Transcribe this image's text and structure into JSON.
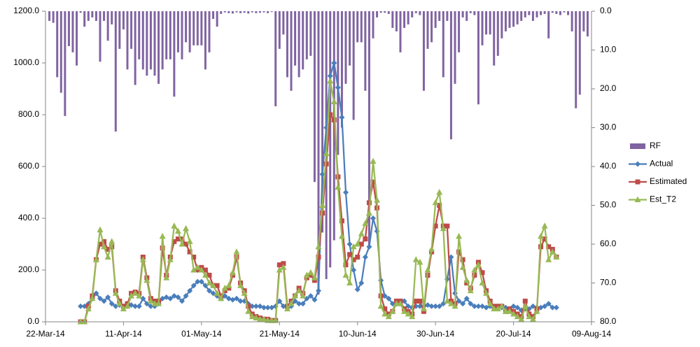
{
  "chart_data": {
    "type": "bar_line",
    "x": [
      "2014-03-23",
      "2014-03-24",
      "2014-03-25",
      "2014-03-26",
      "2014-03-27",
      "2014-03-28",
      "2014-03-29",
      "2014-03-30",
      "2014-03-31",
      "2014-04-01",
      "2014-04-02",
      "2014-04-03",
      "2014-04-04",
      "2014-04-05",
      "2014-04-06",
      "2014-04-07",
      "2014-04-08",
      "2014-04-09",
      "2014-04-10",
      "2014-04-11",
      "2014-04-12",
      "2014-04-13",
      "2014-04-14",
      "2014-04-15",
      "2014-04-16",
      "2014-04-17",
      "2014-04-18",
      "2014-04-19",
      "2014-04-20",
      "2014-04-21",
      "2014-04-22",
      "2014-04-23",
      "2014-04-24",
      "2014-04-25",
      "2014-04-26",
      "2014-04-27",
      "2014-04-28",
      "2014-04-29",
      "2014-04-30",
      "2014-05-01",
      "2014-05-02",
      "2014-05-03",
      "2014-05-04",
      "2014-05-05",
      "2014-05-06",
      "2014-05-07",
      "2014-05-08",
      "2014-05-09",
      "2014-05-10",
      "2014-05-11",
      "2014-05-12",
      "2014-05-13",
      "2014-05-14",
      "2014-05-15",
      "2014-05-16",
      "2014-05-17",
      "2014-05-18",
      "2014-05-19",
      "2014-05-20",
      "2014-05-21",
      "2014-05-22",
      "2014-05-23",
      "2014-05-24",
      "2014-05-25",
      "2014-05-26",
      "2014-05-27",
      "2014-05-28",
      "2014-05-29",
      "2014-05-30",
      "2014-05-31",
      "2014-06-01",
      "2014-06-02",
      "2014-06-03",
      "2014-06-04",
      "2014-06-05",
      "2014-06-06",
      "2014-06-07",
      "2014-06-08",
      "2014-06-09",
      "2014-06-10",
      "2014-06-11",
      "2014-06-12",
      "2014-06-13",
      "2014-06-14",
      "2014-06-15",
      "2014-06-16",
      "2014-06-17",
      "2014-06-18",
      "2014-06-19",
      "2014-06-20",
      "2014-06-21",
      "2014-06-22",
      "2014-06-23",
      "2014-06-24",
      "2014-06-25",
      "2014-06-26",
      "2014-06-27",
      "2014-06-28",
      "2014-06-29",
      "2014-06-30",
      "2014-07-01",
      "2014-07-02",
      "2014-07-03",
      "2014-07-04",
      "2014-07-05",
      "2014-07-06",
      "2014-07-07",
      "2014-07-08",
      "2014-07-09",
      "2014-07-10",
      "2014-07-11",
      "2014-07-12",
      "2014-07-13",
      "2014-07-14",
      "2014-07-15",
      "2014-07-16",
      "2014-07-17",
      "2014-07-18",
      "2014-07-19",
      "2014-07-20",
      "2014-07-21",
      "2014-07-22",
      "2014-07-23",
      "2014-07-24",
      "2014-07-25",
      "2014-07-26",
      "2014-07-27",
      "2014-07-28",
      "2014-07-29",
      "2014-07-30",
      "2014-07-31",
      "2014-08-01",
      "2014-08-02",
      "2014-08-03",
      "2014-08-04",
      "2014-08-05",
      "2014-08-06",
      "2014-08-07",
      "2014-08-08"
    ],
    "series": [
      {
        "name": "RF",
        "type": "bar",
        "axis": "y2",
        "color": "#8064a2",
        "values": [
          2.5,
          3,
          17,
          21,
          27,
          9,
          10.6,
          14,
          0.4,
          4,
          2.5,
          1.6,
          2.5,
          13,
          2.5,
          7.6,
          3.4,
          31,
          9.7,
          4.7,
          15,
          9.7,
          19,
          12.4,
          15,
          16.6,
          15,
          16.6,
          18.7,
          15,
          12.4,
          12.4,
          22,
          10.6,
          12.4,
          8,
          10.6,
          8.8,
          8.8,
          8.8,
          15,
          10.6,
          2,
          4,
          0.7,
          0.3,
          0.5,
          0.6,
          0.3,
          0.5,
          0.4,
          0.6,
          0.3,
          0.5,
          0.4,
          0.3,
          0.5,
          0.2,
          24.5,
          9.7,
          6,
          17,
          20.5,
          14,
          17,
          15,
          12.4,
          11.5,
          44,
          73,
          57,
          69,
          66,
          59,
          37,
          30,
          18.7,
          14,
          28,
          8,
          8,
          20.5,
          61,
          7,
          1.6,
          0.4,
          0.4,
          0.7,
          4.3,
          5.2,
          10.6,
          4.3,
          3.4,
          1.6,
          0.5,
          1,
          20.5,
          9.7,
          8,
          4.3,
          2.5,
          17,
          2.5,
          33,
          18.7,
          10.6,
          1.6,
          2.5,
          0.5,
          1,
          24,
          8.8,
          6,
          6,
          14,
          11.5,
          7,
          5.2,
          4.3,
          4,
          3.4,
          2.5,
          1.6,
          1,
          2.5,
          1.6,
          1,
          0.7,
          7,
          0.4,
          0.7,
          1,
          0.3,
          1,
          5.2,
          25,
          21.5,
          5.2,
          6.5
        ]
      },
      {
        "name": "Actual",
        "type": "line",
        "marker": "diamond",
        "color": "#4a7ebb",
        "values": [
          null,
          null,
          null,
          null,
          null,
          null,
          null,
          null,
          60,
          60,
          70,
          90,
          110,
          90,
          80,
          95,
          70,
          60,
          65,
          60,
          60,
          65,
          60,
          60,
          90,
          70,
          60,
          60,
          70,
          90,
          95,
          90,
          100,
          95,
          80,
          100,
          120,
          140,
          155,
          155,
          140,
          120,
          110,
          100,
          90,
          100,
          90,
          85,
          90,
          80,
          80,
          70,
          60,
          60,
          60,
          55,
          55,
          55,
          60,
          80,
          60,
          60,
          60,
          80,
          70,
          70,
          90,
          100,
          85,
          120,
          570,
          750,
          950,
          1000,
          905,
          790,
          500,
          300,
          200,
          125,
          150,
          250,
          290,
          400,
          350,
          160,
          100,
          90,
          70,
          70,
          80,
          80,
          60,
          55,
          60,
          60,
          60,
          65,
          60,
          60,
          60,
          70,
          165,
          250,
          110,
          80,
          70,
          90,
          70,
          60,
          60,
          60,
          55,
          60,
          55,
          60,
          55,
          55,
          50,
          60,
          55,
          45,
          50,
          50,
          60,
          55,
          55,
          60,
          70,
          55,
          55,
          null,
          null,
          null,
          null,
          null,
          null,
          null,
          null
        ]
      },
      {
        "name": "Estimated",
        "type": "line",
        "marker": "square",
        "color": "#be4b48",
        "values": [
          null,
          null,
          null,
          null,
          null,
          null,
          null,
          null,
          0,
          0,
          60,
          100,
          240,
          300,
          310,
          280,
          290,
          120,
          80,
          60,
          70,
          110,
          115,
          110,
          250,
          170,
          90,
          80,
          80,
          285,
          180,
          250,
          310,
          320,
          320,
          300,
          270,
          250,
          200,
          210,
          200,
          180,
          140,
          140,
          100,
          120,
          130,
          180,
          250,
          150,
          120,
          60,
          30,
          20,
          15,
          10,
          10,
          5,
          5,
          220,
          225,
          60,
          80,
          100,
          130,
          110,
          170,
          180,
          160,
          250,
          420,
          610,
          800,
          780,
          560,
          390,
          220,
          260,
          240,
          250,
          300,
          320,
          460,
          540,
          440,
          100,
          50,
          30,
          40,
          80,
          80,
          50,
          40,
          30,
          80,
          80,
          40,
          180,
          270,
          370,
          450,
          370,
          370,
          80,
          70,
          270,
          240,
          150,
          130,
          180,
          230,
          190,
          120,
          80,
          60,
          60,
          60,
          40,
          50,
          40,
          30,
          20,
          80,
          30,
          20,
          50,
          290,
          320,
          290,
          280,
          250,
          null,
          null,
          null,
          null,
          null,
          null,
          null,
          null
        ]
      },
      {
        "name": "Est_T2",
        "type": "line",
        "marker": "triangle",
        "color": "#98b954",
        "values": [
          null,
          null,
          null,
          null,
          null,
          null,
          null,
          null,
          0,
          0,
          50,
          90,
          240,
          355,
          290,
          250,
          310,
          110,
          70,
          50,
          60,
          100,
          110,
          100,
          240,
          160,
          80,
          70,
          70,
          330,
          170,
          240,
          370,
          350,
          300,
          360,
          310,
          200,
          210,
          200,
          180,
          150,
          140,
          110,
          90,
          130,
          140,
          190,
          270,
          140,
          110,
          40,
          20,
          15,
          10,
          10,
          5,
          5,
          5,
          200,
          210,
          50,
          70,
          100,
          120,
          100,
          180,
          190,
          170,
          290,
          450,
          650,
          930,
          850,
          520,
          330,
          180,
          150,
          290,
          300,
          340,
          380,
          420,
          620,
          470,
          60,
          30,
          20,
          40,
          70,
          70,
          40,
          30,
          20,
          240,
          230,
          50,
          200,
          280,
          460,
          500,
          360,
          80,
          70,
          60,
          330,
          210,
          160,
          120,
          200,
          220,
          150,
          110,
          70,
          50,
          50,
          60,
          40,
          40,
          30,
          20,
          10,
          60,
          20,
          10,
          40,
          330,
          370,
          240,
          270,
          250,
          null,
          null,
          null,
          null,
          null,
          null,
          null,
          null
        ]
      }
    ],
    "xlim": [
      "2014-03-22",
      "2014-08-09"
    ],
    "xticks": [
      {
        "value": "2014-03-22",
        "label": "22-Mar-14"
      },
      {
        "value": "2014-04-11",
        "label": "11-Apr-14"
      },
      {
        "value": "2014-05-01",
        "label": "01-May-14"
      },
      {
        "value": "2014-05-21",
        "label": "21-May-14"
      },
      {
        "value": "2014-06-10",
        "label": "10-Jun-14"
      },
      {
        "value": "2014-06-30",
        "label": "30-Jun-14"
      },
      {
        "value": "2014-07-20",
        "label": "20-Jul-14"
      },
      {
        "value": "2014-08-09",
        "label": "09-Aug-14"
      }
    ],
    "ylim": [
      0,
      1200
    ],
    "yticks": [
      {
        "value": 0,
        "label": "0.0"
      },
      {
        "value": 200,
        "label": "200.0"
      },
      {
        "value": 400,
        "label": "400.0"
      },
      {
        "value": 600,
        "label": "600.0"
      },
      {
        "value": 800,
        "label": "800.0"
      },
      {
        "value": 1000,
        "label": "1000.0"
      },
      {
        "value": 1200,
        "label": "1200.0"
      }
    ],
    "y2lim": [
      0,
      80
    ],
    "y2_inverted": true,
    "y2ticks": [
      {
        "value": 0,
        "label": "0.0"
      },
      {
        "value": 10,
        "label": "10.0"
      },
      {
        "value": 20,
        "label": "20.0"
      },
      {
        "value": 30,
        "label": "30.0"
      },
      {
        "value": 40,
        "label": "40.0"
      },
      {
        "value": 50,
        "label": "50.0"
      },
      {
        "value": 60,
        "label": "60.0"
      },
      {
        "value": 70,
        "label": "70.0"
      },
      {
        "value": 80,
        "label": "80.0"
      }
    ],
    "legend": "right"
  }
}
